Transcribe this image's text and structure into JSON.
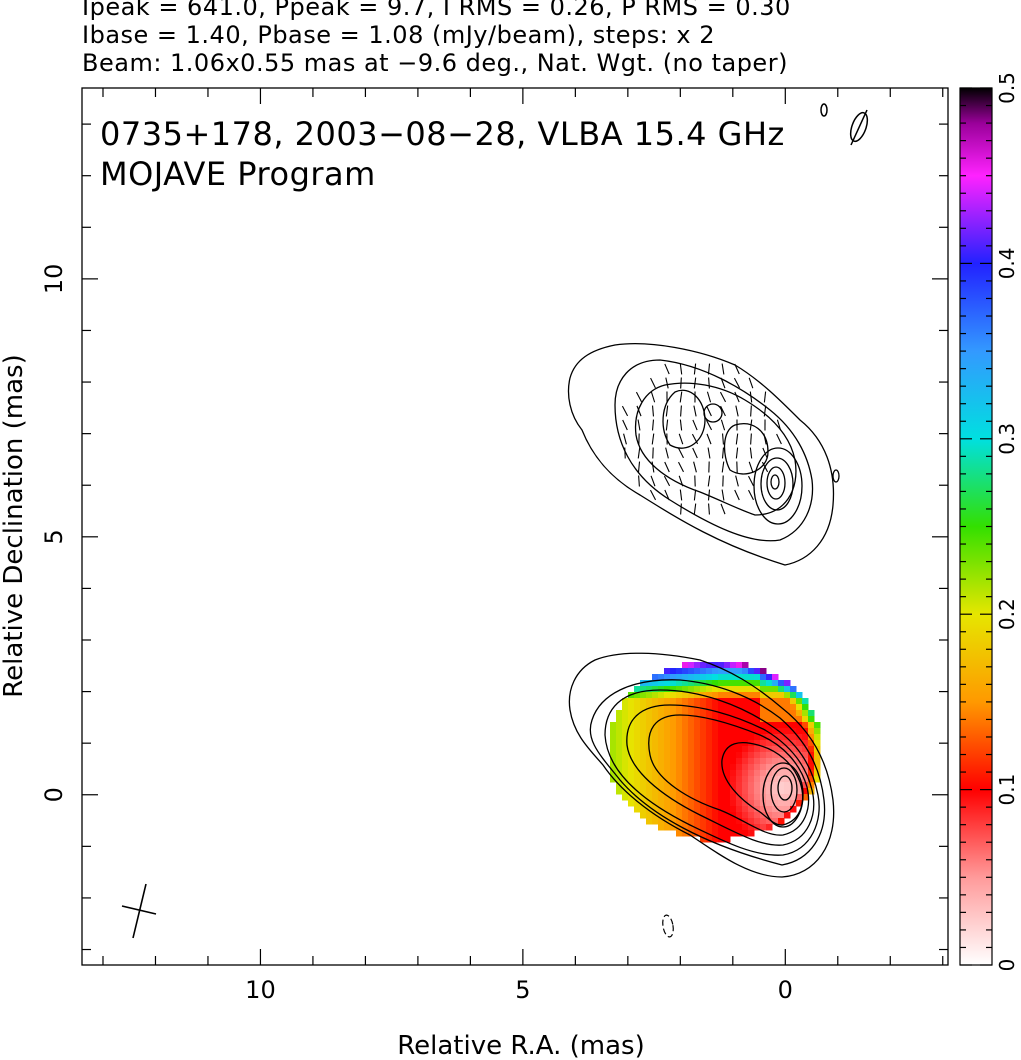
{
  "header": {
    "line1": "Ipeak = 641.0, Ppeak = 9.7, I RMS = 0.26, P RMS = 0.30",
    "line2": "Ibase = 1.40, Pbase = 1.08 (mJy/beam), steps: x 2",
    "line3": "Beam: 1.06x0.55 mas at −9.6 deg., Nat. Wgt. (no taper)"
  },
  "chart_data": {
    "type": "heatmap",
    "title": "0735+178, 2003−08−28, VLBA 15.4 GHz",
    "subtitle": "MOJAVE Program",
    "xlabel": "Relative R.A. (mas)",
    "ylabel": "Relative Declination (mas)",
    "xlim": [
      13.4,
      -3.1
    ],
    "ylim": [
      -3.3,
      13.7
    ],
    "x_ticks": [
      {
        "value": 10,
        "label": "10"
      },
      {
        "value": 5,
        "label": "5"
      },
      {
        "value": 0,
        "label": "0"
      }
    ],
    "y_ticks": [
      {
        "value": 0,
        "label": "0"
      },
      {
        "value": 5,
        "label": "5"
      },
      {
        "value": 10,
        "label": "10"
      }
    ],
    "colorbar": {
      "range": [
        0,
        0.5
      ],
      "ticks": [
        {
          "value": 0,
          "label": "0"
        },
        {
          "value": 0.1,
          "label": "0.1"
        },
        {
          "value": 0.2,
          "label": "0.2"
        },
        {
          "value": 0.3,
          "label": "0.3"
        },
        {
          "value": 0.4,
          "label": "0.4"
        },
        {
          "value": 0.5,
          "label": "0.5"
        }
      ],
      "colors": [
        {
          "value": 0.0,
          "color": "#ffffff"
        },
        {
          "value": 0.05,
          "color": "#ff9a9a"
        },
        {
          "value": 0.1,
          "color": "#ff0000"
        },
        {
          "value": 0.15,
          "color": "#ff9900"
        },
        {
          "value": 0.2,
          "color": "#e6e600"
        },
        {
          "value": 0.25,
          "color": "#33e000"
        },
        {
          "value": 0.3,
          "color": "#00e0e0"
        },
        {
          "value": 0.35,
          "color": "#3399ff"
        },
        {
          "value": 0.4,
          "color": "#2222ff"
        },
        {
          "value": 0.45,
          "color": "#ff22ff"
        },
        {
          "value": 0.48,
          "color": "#990099"
        },
        {
          "value": 0.5,
          "color": "#000000"
        }
      ]
    },
    "core": {
      "ra": 0.0,
      "dec": 0.0,
      "contour_levels": 8
    },
    "fractional_polarization": {
      "center": [
        0.3,
        0.3
      ],
      "samples": [
        {
          "ra": 0.0,
          "dec": 0.0,
          "value": 0.02
        },
        {
          "ra": 0.5,
          "dec": 0.5,
          "value": 0.09
        },
        {
          "ra": 1.2,
          "dec": 0.4,
          "value": 0.12
        },
        {
          "ra": 2.0,
          "dec": 0.8,
          "value": 0.15
        },
        {
          "ra": 2.8,
          "dec": 1.0,
          "value": 0.19
        },
        {
          "ra": 2.5,
          "dec": 2.2,
          "value": 0.4
        },
        {
          "ra": 2.0,
          "dec": 2.6,
          "value": 0.48
        },
        {
          "ra": 1.5,
          "dec": -0.5,
          "value": 0.14
        }
      ]
    },
    "jet_component": {
      "ra": 1.4,
      "dec": 6.8,
      "contour_levels": 4,
      "evpa_deg": 0
    },
    "beam": {
      "major_mas": 1.06,
      "minor_mas": 0.55,
      "pa_deg": -9.6
    },
    "cross_marker": {
      "ra": 12.6,
      "dec": -2.2
    }
  }
}
